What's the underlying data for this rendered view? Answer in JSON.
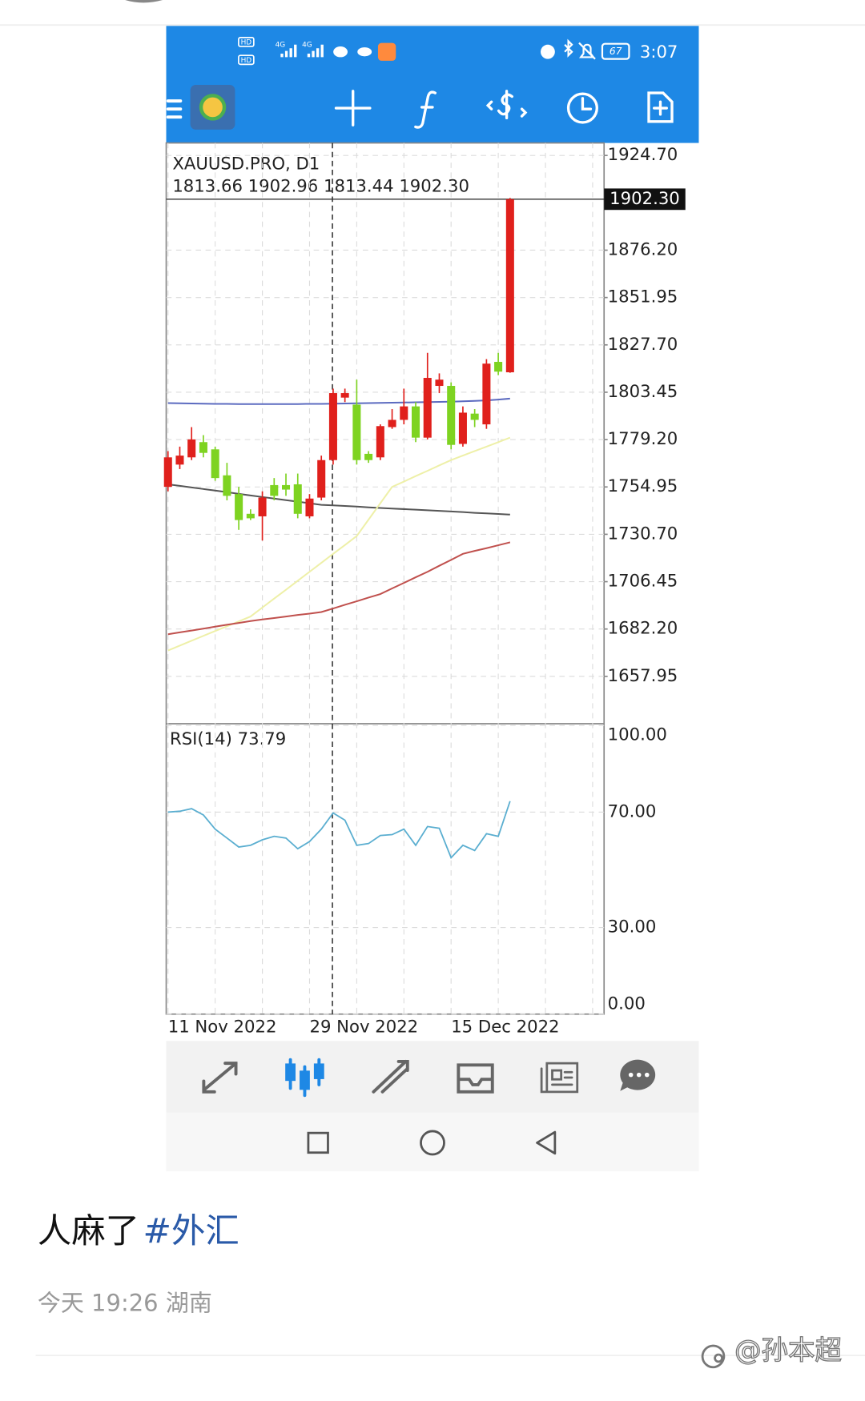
{
  "status_bar": {
    "sim_labels": [
      "HD",
      "HD"
    ],
    "network_labels": [
      "4G",
      "4G"
    ],
    "battery": "67",
    "time": "3:07"
  },
  "chart_data": [
    {
      "type": "candlestick",
      "title": "XAUUSD.PRO, D1",
      "ohlc_text": "1813.66 1902.96 1813.44 1902.30",
      "price_label": "1902.30",
      "categories": [
        "11 Nov 2022",
        null,
        null,
        null,
        null,
        null,
        null,
        null,
        null,
        null,
        null,
        null,
        "29 Nov 2022",
        null,
        null,
        null,
        null,
        null,
        null,
        null,
        null,
        null,
        null,
        null,
        "15 Dec 2022",
        null,
        null,
        null,
        null,
        null
      ],
      "open": [
        1755.0,
        1766.4,
        1770.1,
        1777.9,
        1774.2,
        1760.9,
        1751.3,
        1741.2,
        1739.9,
        1755.9,
        1755.9,
        1756.3,
        1739.9,
        1749.5,
        1768.7,
        1800.7,
        1797.1,
        1771.9,
        1770.1,
        1785.6,
        1789.3,
        1796.2,
        1780.2,
        1806.7,
        1806.7,
        1777.0,
        1792.5,
        1787.0,
        1819.0,
        1813.66
      ],
      "high": [
        1773.3,
        1775.6,
        1785.6,
        1781.5,
        1775.6,
        1767.3,
        1755.0,
        1743.5,
        1752.7,
        1759.5,
        1761.8,
        1761.8,
        1751.3,
        1771.0,
        1805.3,
        1805.3,
        1809.9,
        1773.3,
        1787.0,
        1794.8,
        1805.3,
        1798.4,
        1823.6,
        1813.1,
        1808.5,
        1796.2,
        1794.8,
        1820.4,
        1823.6,
        1902.96
      ],
      "low": [
        1752.7,
        1764.1,
        1768.7,
        1770.1,
        1758.1,
        1748.1,
        1733.0,
        1738.0,
        1727.5,
        1748.1,
        1750.4,
        1738.9,
        1738.9,
        1748.1,
        1766.4,
        1798.4,
        1766.4,
        1767.3,
        1768.7,
        1784.7,
        1787.0,
        1777.9,
        1779.3,
        1803.0,
        1774.2,
        1775.6,
        1785.6,
        1784.7,
        1812.2,
        1813.44
      ],
      "close": [
        1770.1,
        1771.0,
        1779.3,
        1772.4,
        1759.5,
        1750.4,
        1738.0,
        1738.9,
        1749.5,
        1750.4,
        1753.6,
        1741.2,
        1749.0,
        1768.7,
        1803.0,
        1803.0,
        1768.7,
        1768.7,
        1786.1,
        1789.3,
        1796.2,
        1780.2,
        1810.8,
        1809.9,
        1776.5,
        1793.0,
        1789.3,
        1818.1,
        1814.0,
        1902.3
      ],
      "up_color": "#e0201c",
      "down_color": "#7ed321",
      "overlays": [
        {
          "color": "#5c6bc0",
          "values": [
            1797.9,
            1797.8,
            1797.7,
            1797.6,
            1797.5,
            1797.5,
            1797.4,
            1797.4,
            1797.4,
            1797.4,
            1797.4,
            1797.4,
            1797.5,
            1797.5,
            1797.6,
            1797.7,
            1797.8,
            1797.9,
            1798.0,
            1798.1,
            1798.2,
            1798.3,
            1798.4,
            1798.5,
            1798.6,
            1798.8,
            1799.0,
            1799.3,
            1799.7,
            1800.2
          ]
        },
        {
          "color": "#555555",
          "values": [
            1756.3,
            1755.5,
            1754.7,
            1753.9,
            1753.1,
            1752.3,
            1751.4,
            1750.6,
            1749.8,
            1749.0,
            1748.2,
            1747.4,
            1746.6,
            1745.8,
            1745.5,
            1745.2,
            1744.9,
            1744.5,
            1744.2,
            1743.9,
            1743.6,
            1743.3,
            1743.0,
            1742.7,
            1742.4,
            1742.1,
            1741.7,
            1741.4,
            1741.1,
            1740.8
          ]
        },
        {
          "color": "#eef0a8",
          "values": [
            1671.2,
            1673.7,
            1676.2,
            1678.7,
            1681.2,
            1683.6,
            1686.1,
            1688.6,
            1693.2,
            1697.8,
            1702.3,
            1706.9,
            1711.5,
            1716.1,
            1720.7,
            1725.2,
            1729.8,
            1738.2,
            1746.6,
            1755.0,
            1757.7,
            1760.5,
            1763.2,
            1766.0,
            1768.7,
            1771.0,
            1773.3,
            1775.6,
            1777.9,
            1780.2
          ]
        },
        {
          "color": "#c0504d",
          "values": [
            1679.5,
            1680.5,
            1681.4,
            1682.4,
            1683.4,
            1684.4,
            1685.3,
            1686.3,
            1687.1,
            1687.8,
            1688.6,
            1689.4,
            1690.1,
            1690.9,
            1692.7,
            1694.6,
            1696.4,
            1698.3,
            1700.1,
            1703.0,
            1705.8,
            1708.7,
            1711.5,
            1714.6,
            1717.6,
            1720.7,
            1722.2,
            1723.6,
            1725.1,
            1726.6
          ]
        }
      ],
      "ylim": [
        1633.7,
        1931.1
      ],
      "yticks": [
        {
          "value": 1924.7,
          "label": "1924.70"
        },
        {
          "value": 1876.2,
          "label": "1876.20"
        },
        1851.95,
        {
          "value": 1827.7,
          "label": "1827.70"
        },
        1803.45,
        {
          "value": 1779.2,
          "label": "1779.20"
        },
        1754.95,
        {
          "value": 1730.7,
          "label": "1730.70"
        },
        1706.45,
        {
          "value": 1682.2,
          "label": "1682.20"
        },
        1657.95
      ],
      "grid": true
    },
    {
      "type": "line",
      "title": "RSI(14) 73.79",
      "color": "#5aaed0",
      "values": [
        70.0,
        70.3,
        71.2,
        69.0,
        64.1,
        61.0,
        57.9,
        58.5,
        60.4,
        61.6,
        61.0,
        57.3,
        59.8,
        64.1,
        69.7,
        67.2,
        58.5,
        59.1,
        61.9,
        62.2,
        64.1,
        58.5,
        65.0,
        64.4,
        54.2,
        58.5,
        56.7,
        62.5,
        61.6,
        73.79
      ],
      "ylim": [
        0,
        100
      ],
      "yticks": [
        {
          "value": 100,
          "label": "100.00"
        },
        {
          "value": 70,
          "label": "70.00"
        },
        {
          "value": 30,
          "label": "30.00"
        },
        {
          "value": 0,
          "label": "0.00"
        }
      ],
      "grid": true
    }
  ],
  "post": {
    "text": "人麻了",
    "hashtag": "#外汇",
    "meta": "今天 19:26 湖南",
    "watermark": "@孙本超"
  }
}
